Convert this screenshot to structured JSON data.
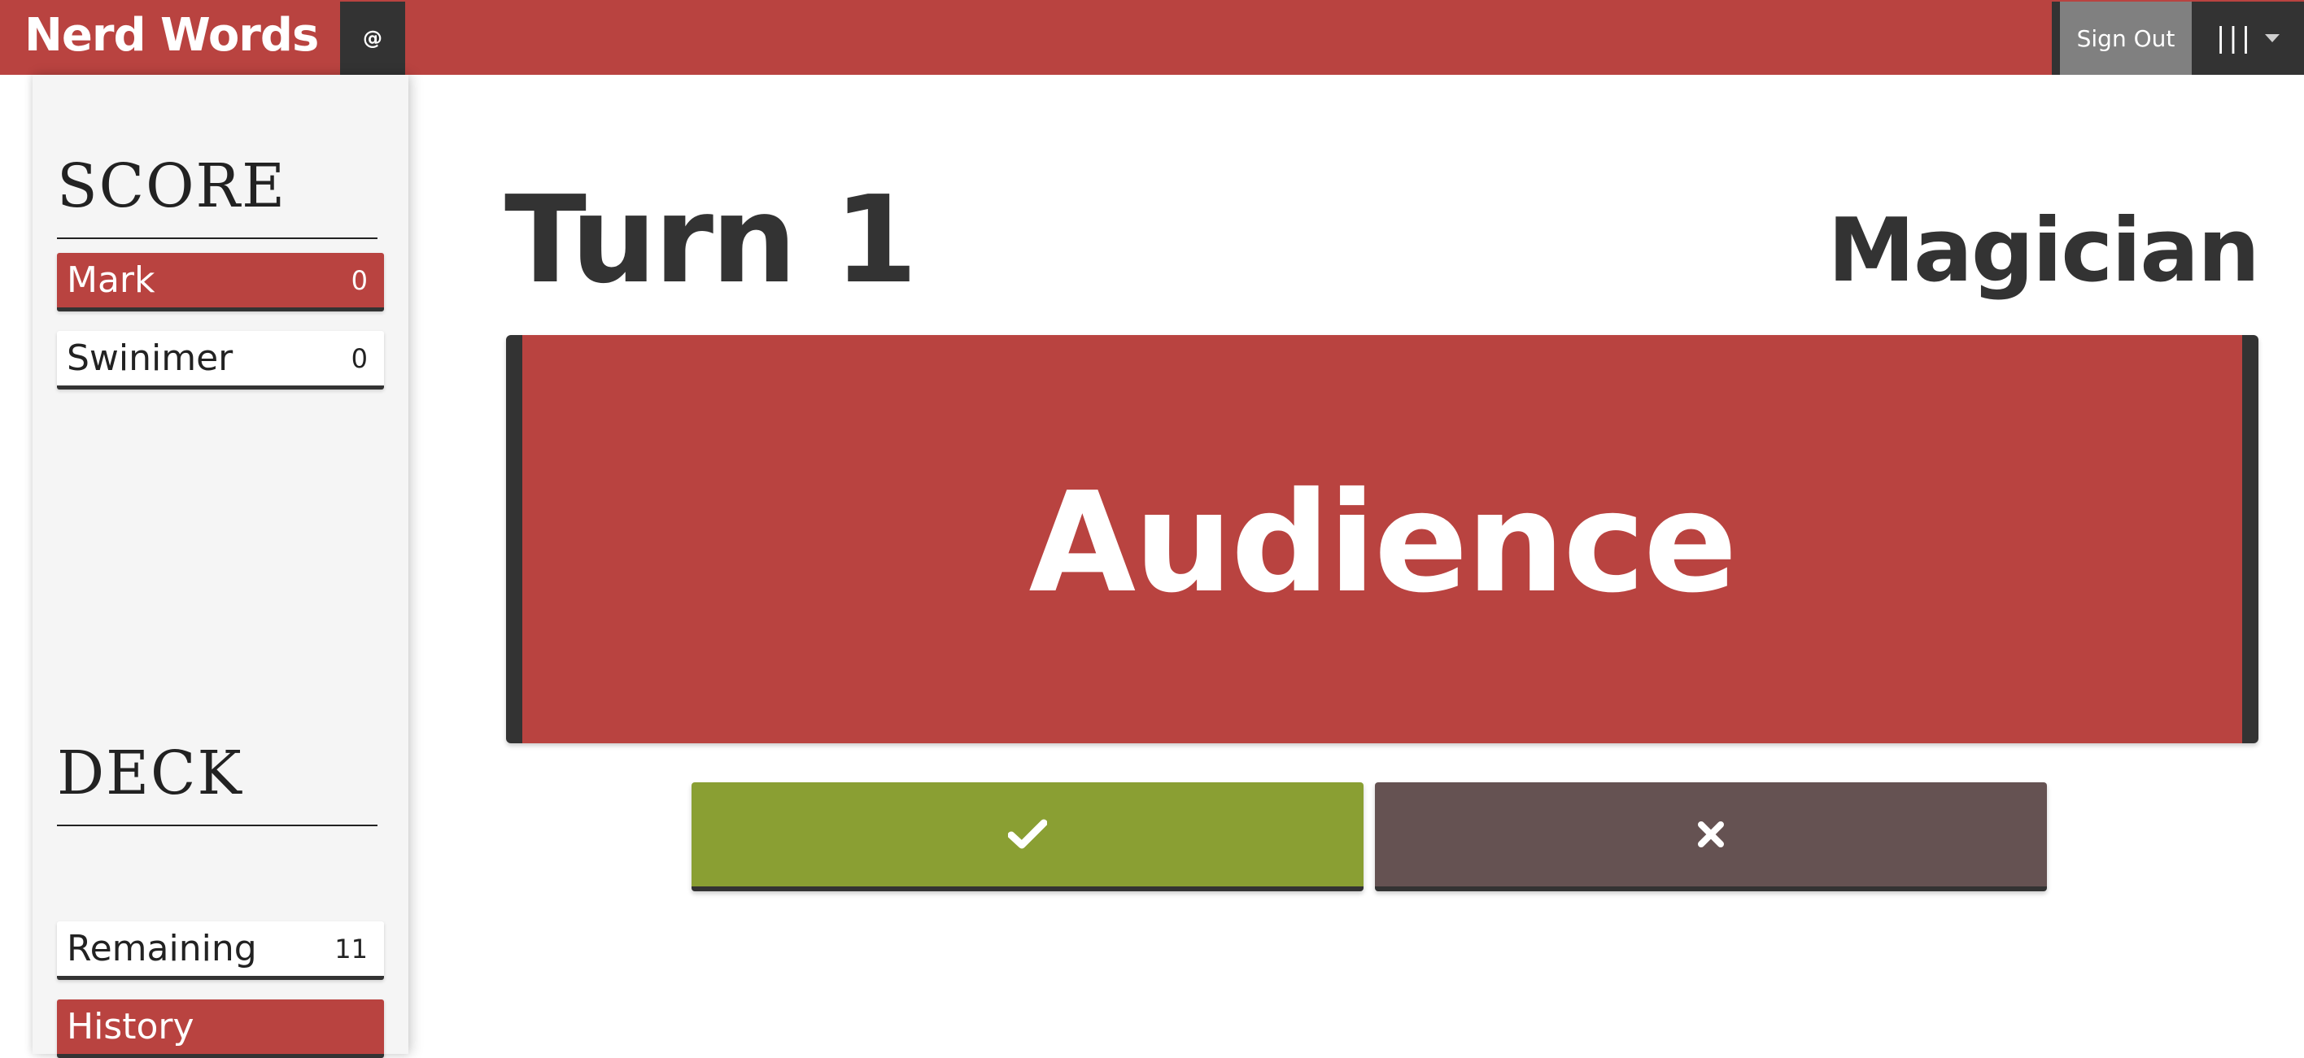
{
  "header": {
    "brand": "Nerd Words",
    "at_label": "@",
    "signout_label": "Sign Out",
    "menu_label": "|||",
    "menu_icon": "chevron-down-icon"
  },
  "sidebar": {
    "score": {
      "title": "SCORE",
      "players": [
        {
          "name": "Mark",
          "score": "0"
        },
        {
          "name": "Swinimer",
          "score": "0"
        }
      ]
    },
    "deck": {
      "title": "DECK",
      "remaining_label": "Remaining",
      "remaining_value": "11",
      "history_label": "History"
    }
  },
  "main": {
    "turn_label": "Turn 1",
    "role": "Magician",
    "word": "Audience",
    "correct_icon": "check-icon",
    "skip_icon": "close-icon"
  },
  "colors": {
    "accent_red": "#b94340",
    "dark": "#333333",
    "correct_green": "#8a9f33",
    "skip_brown": "#655252",
    "signout_gray": "#808080",
    "sidebar_bg": "#f5f5f5"
  }
}
